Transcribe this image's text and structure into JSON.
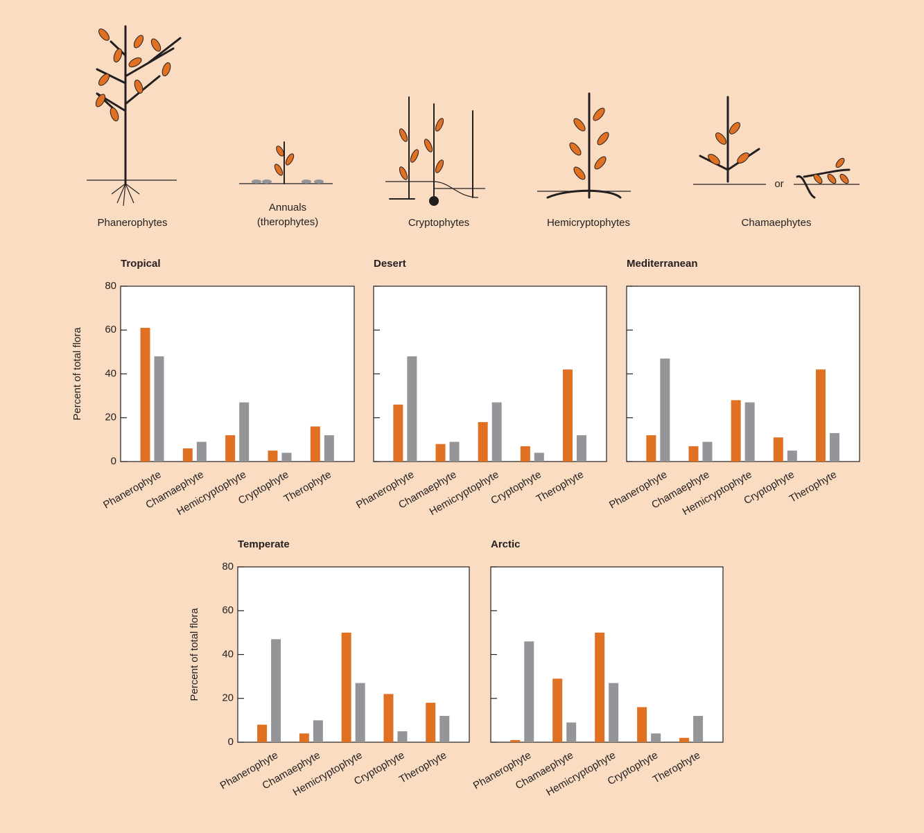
{
  "illustrations": {
    "labels": [
      [
        "Phanerophytes"
      ],
      [
        "Annuals",
        "(therophytes)"
      ],
      [
        "Cryptophytes"
      ],
      [
        "Hemicryptophytes"
      ],
      [
        "Chamaephytes"
      ]
    ],
    "or": "or"
  },
  "chart_data": [
    {
      "type": "bar",
      "title": "Tropical",
      "y_label": "Percent of total flora",
      "categories": [
        "Phanerophyte",
        "Chamaephyte",
        "Hemicryptophyte",
        "Cryptophyte",
        "Therophyte"
      ],
      "series": [
        {
          "color": "#e07022",
          "values": [
            61,
            6,
            12,
            5,
            16
          ]
        },
        {
          "color": "#939598",
          "values": [
            48,
            9,
            27,
            4,
            12
          ]
        }
      ],
      "ylim": [
        0,
        80
      ],
      "yticks": [
        0,
        20,
        40,
        60,
        80
      ],
      "ytick_labels": true
    },
    {
      "type": "bar",
      "title": "Desert",
      "categories": [
        "Phanerophyte",
        "Chamaephyte",
        "Hemicryptophyte",
        "Cryptophyte",
        "Therophyte"
      ],
      "series": [
        {
          "color": "#e07022",
          "values": [
            26,
            8,
            18,
            7,
            42
          ]
        },
        {
          "color": "#939598",
          "values": [
            48,
            9,
            27,
            4,
            12
          ]
        }
      ],
      "ylim": [
        0,
        80
      ],
      "yticks": [
        0,
        20,
        40,
        60,
        80
      ],
      "ytick_labels": false
    },
    {
      "type": "bar",
      "title": "Mediterranean",
      "categories": [
        "Phanerophyte",
        "Chamaephyte",
        "Hemicryptophyte",
        "Cryptophyte",
        "Therophyte"
      ],
      "series": [
        {
          "color": "#e07022",
          "values": [
            12,
            7,
            28,
            11,
            42
          ]
        },
        {
          "color": "#939598",
          "values": [
            47,
            9,
            27,
            5,
            13
          ]
        }
      ],
      "ylim": [
        0,
        80
      ],
      "yticks": [
        0,
        20,
        40,
        60,
        80
      ],
      "ytick_labels": false
    },
    {
      "type": "bar",
      "title": "Temperate",
      "y_label": "Percent of total flora",
      "categories": [
        "Phanerophyte",
        "Chamaephyte",
        "Hemicryptophyte",
        "Cryptophyte",
        "Therophyte"
      ],
      "series": [
        {
          "color": "#e07022",
          "values": [
            8,
            4,
            50,
            22,
            18
          ]
        },
        {
          "color": "#939598",
          "values": [
            47,
            10,
            27,
            5,
            12
          ]
        }
      ],
      "ylim": [
        0,
        80
      ],
      "yticks": [
        0,
        20,
        40,
        60,
        80
      ],
      "ytick_labels": true
    },
    {
      "type": "bar",
      "title": "Arctic",
      "categories": [
        "Phanerophyte",
        "Chamaephyte",
        "Hemicryptophyte",
        "Cryptophyte",
        "Therophyte"
      ],
      "series": [
        {
          "color": "#e07022",
          "values": [
            1,
            29,
            50,
            16,
            2
          ]
        },
        {
          "color": "#939598",
          "values": [
            46,
            9,
            27,
            4,
            12
          ]
        }
      ],
      "ylim": [
        0,
        80
      ],
      "yticks": [
        0,
        20,
        40,
        60,
        80
      ],
      "ytick_labels": false
    }
  ]
}
